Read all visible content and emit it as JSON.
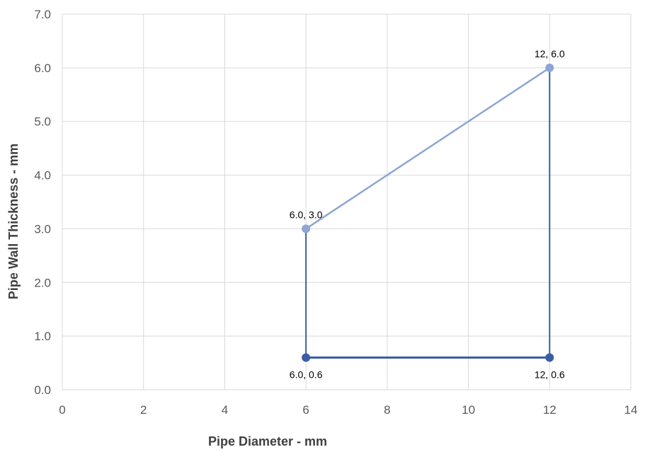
{
  "chart_data": {
    "type": "scatter",
    "title": "",
    "xlabel": "Pipe Diameter - mm",
    "ylabel": "Pipe Wall Thickness - mm",
    "xlim": [
      0,
      14
    ],
    "ylim": [
      0,
      7
    ],
    "x_ticks": [
      0,
      2,
      4,
      6,
      8,
      10,
      12,
      14
    ],
    "x_tick_labels": [
      "0",
      "2",
      "4",
      "6",
      "8",
      "10",
      "12",
      "14"
    ],
    "y_ticks": [
      0,
      1,
      2,
      3,
      4,
      5,
      6,
      7
    ],
    "y_tick_labels": [
      "0.0",
      "1.0",
      "2.0",
      "3.0",
      "4.0",
      "5.0",
      "6.0",
      "7.0"
    ],
    "grid": true,
    "legend": "none",
    "segments": [
      {
        "from": [
          6,
          3
        ],
        "to": [
          12,
          6
        ],
        "color": "#8EA5D6",
        "width": 2.5
      },
      {
        "from": [
          6,
          0.6
        ],
        "to": [
          6,
          3
        ],
        "color": "#3A5DA8",
        "width": 2
      },
      {
        "from": [
          12,
          0.6
        ],
        "to": [
          12,
          6
        ],
        "color": "#3A5DA8",
        "width": 2
      },
      {
        "from": [
          6,
          0.6
        ],
        "to": [
          12,
          0.6
        ],
        "color": "#3A5DA8",
        "width": 3
      }
    ],
    "points": [
      {
        "x": 6,
        "y": 0.6,
        "label": "6.0, 0.6",
        "color": "#3A5DA8",
        "label_pos": "below"
      },
      {
        "x": 12,
        "y": 0.6,
        "label": "12, 0.6",
        "color": "#3A5DA8",
        "label_pos": "below"
      },
      {
        "x": 6,
        "y": 3,
        "label": "6.0, 3.0",
        "color": "#8EA5D6",
        "label_pos": "above"
      },
      {
        "x": 12,
        "y": 6,
        "label": "12, 6.0",
        "color": "#8EA5D6",
        "label_pos": "above"
      }
    ]
  }
}
